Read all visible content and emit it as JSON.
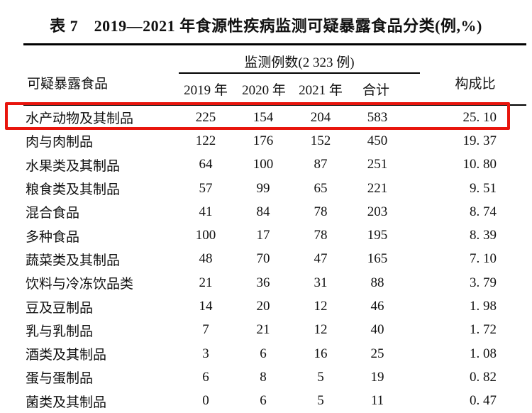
{
  "title": "表 7　2019—2021 年食源性疾病监测可疑暴露食品分类(例,%)",
  "highlight_color": "#e8150d",
  "table": {
    "col_food": "可疑暴露食品",
    "group_header": "监测例数(2 323 例)",
    "col_years": [
      "2019 年",
      "2020 年",
      "2021 年",
      "合计"
    ],
    "col_ratio": "构成比",
    "rows": [
      {
        "name": "水产动物及其制品",
        "y2019": "225",
        "y2020": "154",
        "y2021": "204",
        "total": "583",
        "pct": "25. 10",
        "highlighted": true
      },
      {
        "name": "肉与肉制品",
        "y2019": "122",
        "y2020": "176",
        "y2021": "152",
        "total": "450",
        "pct": "19. 37",
        "highlighted": false
      },
      {
        "name": "水果类及其制品",
        "y2019": "64",
        "y2020": "100",
        "y2021": "87",
        "total": "251",
        "pct": "10. 80",
        "highlighted": false
      },
      {
        "name": "粮食类及其制品",
        "y2019": "57",
        "y2020": "99",
        "y2021": "65",
        "total": "221",
        "pct": "9. 51",
        "highlighted": false
      },
      {
        "name": "混合食品",
        "y2019": "41",
        "y2020": "84",
        "y2021": "78",
        "total": "203",
        "pct": "8. 74",
        "highlighted": false
      },
      {
        "name": "多种食品",
        "y2019": "100",
        "y2020": "17",
        "y2021": "78",
        "total": "195",
        "pct": "8. 39",
        "highlighted": false
      },
      {
        "name": "蔬菜类及其制品",
        "y2019": "48",
        "y2020": "70",
        "y2021": "47",
        "total": "165",
        "pct": "7. 10",
        "highlighted": false
      },
      {
        "name": "饮料与冷冻饮品类",
        "y2019": "21",
        "y2020": "36",
        "y2021": "31",
        "total": "88",
        "pct": "3. 79",
        "highlighted": false
      },
      {
        "name": "豆及豆制品",
        "y2019": "14",
        "y2020": "20",
        "y2021": "12",
        "total": "46",
        "pct": "1. 98",
        "highlighted": false
      },
      {
        "name": "乳与乳制品",
        "y2019": "7",
        "y2020": "21",
        "y2021": "12",
        "total": "40",
        "pct": "1. 72",
        "highlighted": false
      },
      {
        "name": "酒类及其制品",
        "y2019": "3",
        "y2020": "6",
        "y2021": "16",
        "total": "25",
        "pct": "1. 08",
        "highlighted": false
      },
      {
        "name": "蛋与蛋制品",
        "y2019": "6",
        "y2020": "8",
        "y2021": "5",
        "total": "19",
        "pct": "0. 82",
        "highlighted": false
      },
      {
        "name": "菌类及其制品",
        "y2019": "0",
        "y2020": "6",
        "y2021": "5",
        "total": "11",
        "pct": "0. 47",
        "highlighted": false
      }
    ]
  }
}
